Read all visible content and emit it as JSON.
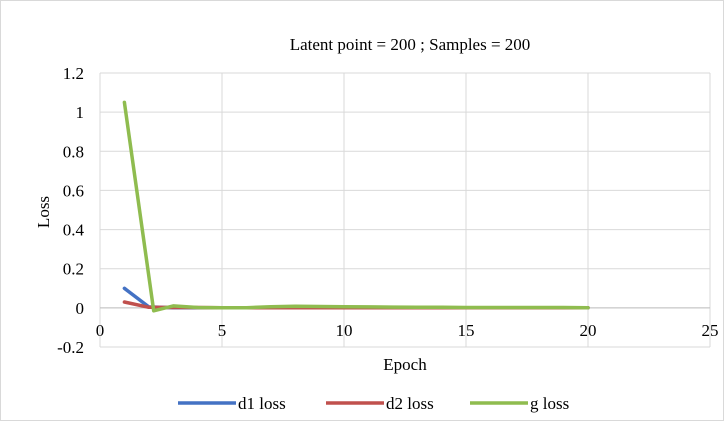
{
  "chart_data": {
    "type": "line",
    "title": "Latent point = 200 ; Samples = 200",
    "xlabel": "Epoch",
    "ylabel": "Loss",
    "xlim": [
      0,
      25
    ],
    "ylim": [
      -0.2,
      1.2
    ],
    "x_ticks": [
      "0",
      "5",
      "10",
      "15",
      "20",
      "25"
    ],
    "y_ticks": [
      "-0.2",
      "0",
      "0.2",
      "0.4",
      "0.6",
      "0.8",
      "1",
      "1.2"
    ],
    "grid": true,
    "legend_position": "bottom",
    "series": [
      {
        "name": "d1 loss",
        "color": "#4472c4",
        "x": [
          1,
          2,
          3,
          4,
          5,
          6,
          7,
          8,
          9,
          10,
          11,
          12,
          13,
          14,
          15,
          16,
          17,
          18,
          19,
          20
        ],
        "y": [
          0.1,
          0.005,
          0.001,
          0.001,
          0.001,
          0.001,
          0.001,
          0.001,
          0.001,
          0.001,
          0.001,
          0.001,
          0.001,
          0.001,
          0.001,
          0.001,
          0.001,
          0.001,
          0.001,
          0.001
        ]
      },
      {
        "name": "d2 loss",
        "color": "#c0504d",
        "x": [
          1,
          2,
          3,
          4,
          5,
          6,
          7,
          8,
          9,
          10,
          11,
          12,
          13,
          14,
          15,
          16,
          17,
          18,
          19,
          20
        ],
        "y": [
          0.03,
          0.003,
          0.002,
          0.002,
          0.001,
          0.001,
          0.001,
          0.001,
          0.001,
          0.001,
          0.001,
          0.001,
          0.001,
          0.001,
          0.001,
          0.001,
          0.001,
          0.001,
          0.001,
          0.001
        ]
      },
      {
        "name": "g loss",
        "color": "#8fbc4f",
        "x": [
          1,
          2.2,
          3,
          4,
          5,
          6,
          7,
          8,
          9,
          10,
          11,
          12,
          13,
          14,
          15,
          16,
          17,
          18,
          19,
          20
        ],
        "y": [
          1.05,
          -0.015,
          0.01,
          0.002,
          0.001,
          0.001,
          0.006,
          0.008,
          0.007,
          0.006,
          0.005,
          0.004,
          0.003,
          0.003,
          0.002,
          0.002,
          0.002,
          0.002,
          0.002,
          0.001
        ]
      }
    ]
  }
}
